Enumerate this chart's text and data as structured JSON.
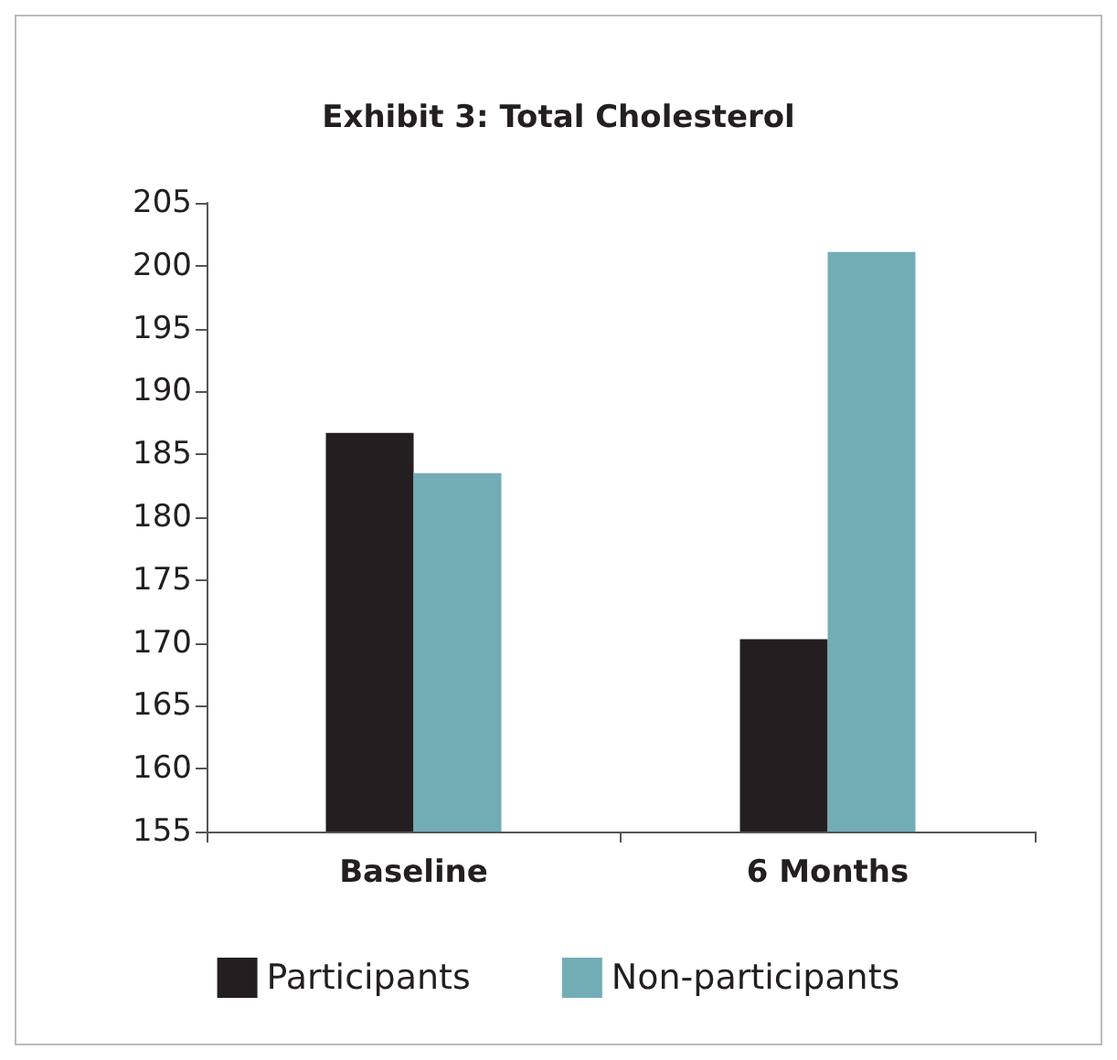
{
  "chart_data": {
    "type": "bar",
    "title": "Exhibit 3: Total Cholesterol",
    "categories": [
      "Baseline",
      "6 Months"
    ],
    "series": [
      {
        "name": "Participants",
        "color": "#231f20",
        "values": [
          186.7,
          170.3
        ]
      },
      {
        "name": "Non-participants",
        "color": "#72adb5",
        "values": [
          183.5,
          201.1
        ]
      }
    ],
    "ylim": [
      155,
      205
    ],
    "yticks": [
      155,
      160,
      165,
      170,
      175,
      180,
      185,
      190,
      195,
      200,
      205
    ],
    "grid": false,
    "legend": "bottom"
  }
}
